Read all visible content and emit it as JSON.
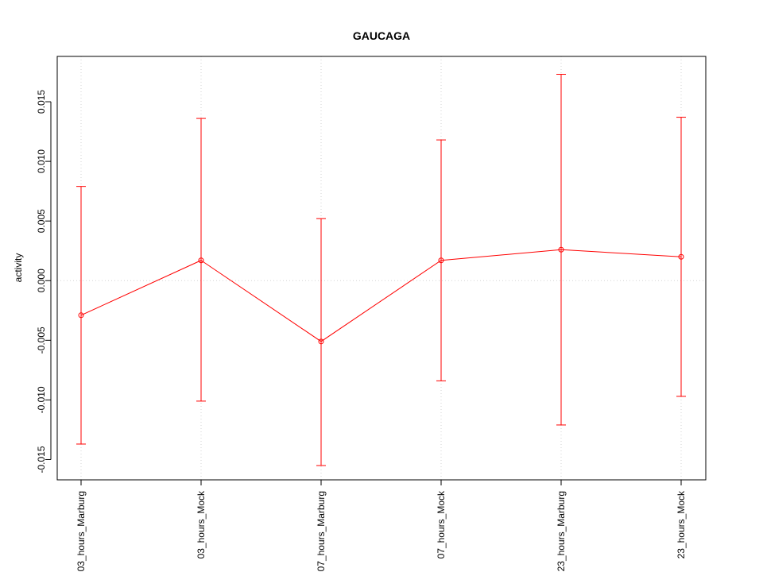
{
  "chart_data": {
    "type": "line",
    "title": "GAUCAGA",
    "xlabel": "",
    "ylabel": "activity",
    "categories": [
      "03_hours_Marburg",
      "03_hours_Mock",
      "07_hours_Marburg",
      "07_hours_Mock",
      "23_hours_Marburg",
      "23_hours_Mock"
    ],
    "series": [
      {
        "values": [
          -0.0029,
          0.0017,
          -0.0051,
          0.0017,
          0.0026,
          0.002
        ],
        "error_low": [
          -0.0137,
          -0.0101,
          -0.0155,
          -0.0084,
          -0.0121,
          -0.0097
        ],
        "error_high": [
          0.0079,
          0.0136,
          0.0052,
          0.0118,
          0.0173,
          0.0137
        ]
      }
    ],
    "ylim": [
      -0.0167,
      0.0188
    ],
    "yticks": [
      -0.015,
      -0.01,
      -0.005,
      0.0,
      0.005,
      0.01,
      0.015
    ],
    "ytick_labels": [
      "-0.015",
      "-0.010",
      "-0.005",
      "0.000",
      "0.005",
      "0.010",
      "0.015"
    ],
    "grid": true,
    "colors": {
      "series": "#ff0000",
      "grid": "#d3d3d3",
      "axis": "#000000"
    }
  }
}
